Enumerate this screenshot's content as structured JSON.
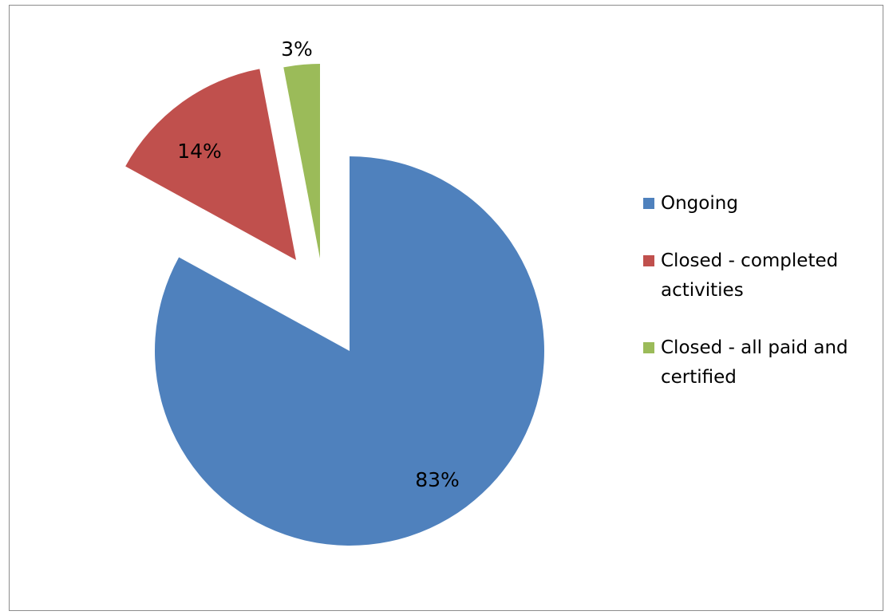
{
  "chart_data": {
    "type": "pie",
    "exploded": true,
    "start_angle_deg": 0,
    "direction": "clockwise",
    "slices": [
      {
        "name": "Ongoing",
        "value": 83,
        "label": "83%",
        "color": "#4f81bd"
      },
      {
        "name": "Closed - completed activities",
        "value": 14,
        "label": "14%",
        "color": "#c0504d"
      },
      {
        "name": "Closed - all paid and certified",
        "value": 3,
        "label": "3%",
        "color": "#9bbb59"
      }
    ],
    "legend": {
      "position": "right",
      "items": [
        {
          "lines": [
            "Ongoing"
          ],
          "color": "#4f81bd"
        },
        {
          "lines": [
            "Closed - completed",
            "activities"
          ],
          "color": "#c0504d"
        },
        {
          "lines": [
            "Closed - all paid and",
            "certified"
          ],
          "color": "#9bbb59"
        }
      ]
    }
  }
}
